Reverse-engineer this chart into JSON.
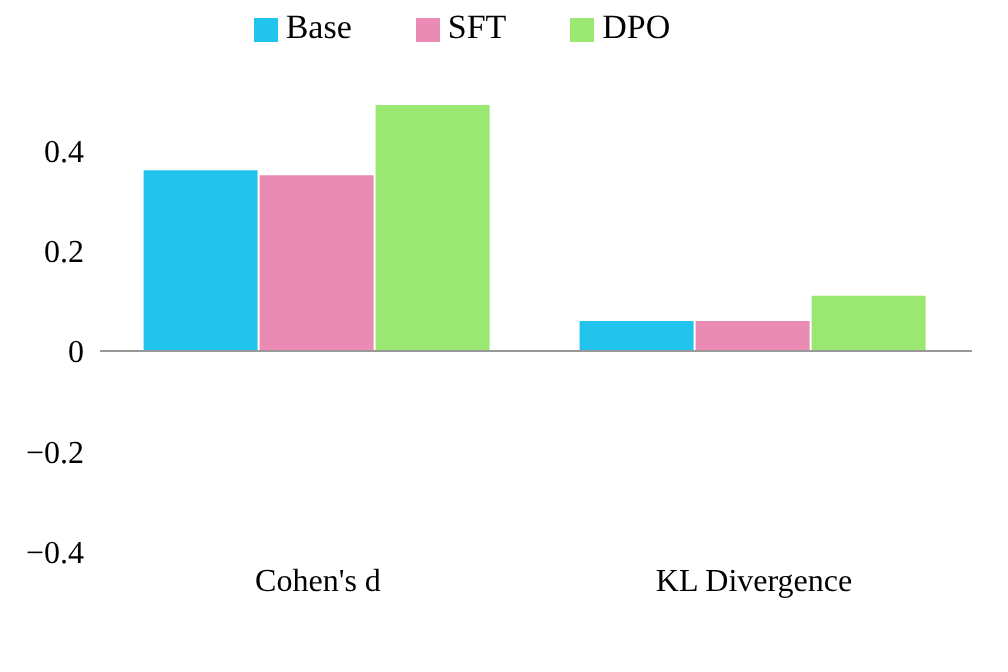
{
  "chart_data": {
    "type": "bar",
    "categories": [
      "Cohen's d",
      "KL Divergence"
    ],
    "series": [
      {
        "name": "Base",
        "color": "#22c4ec",
        "values": [
          0.36,
          0.06
        ]
      },
      {
        "name": "SFT",
        "color": "#ea8bb4",
        "values": [
          0.35,
          0.06
        ]
      },
      {
        "name": "DPO",
        "color": "#9ae872",
        "values": [
          0.49,
          0.11
        ]
      }
    ],
    "ylim": [
      -0.4,
      0.5
    ],
    "yticks": [
      {
        "value": -0.4,
        "label": "−0.4"
      },
      {
        "value": -0.2,
        "label": "−0.2"
      },
      0,
      0.2,
      0.4
    ],
    "legend": "top"
  }
}
